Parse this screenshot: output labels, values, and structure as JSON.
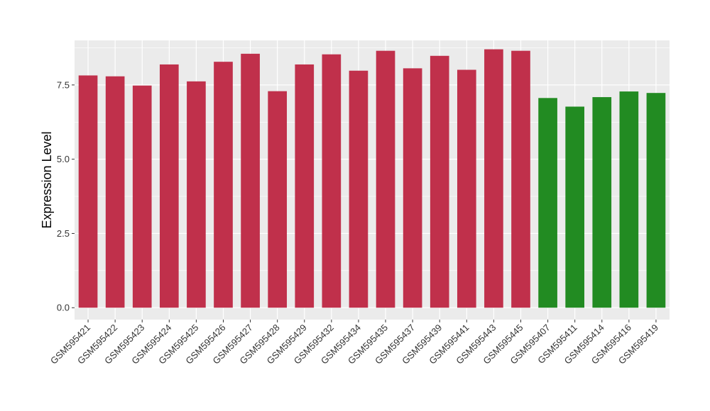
{
  "chart_data": {
    "type": "bar",
    "ylabel": "Expression Level",
    "xlabel": "",
    "ylim": [
      -0.4,
      9.0
    ],
    "yticks": [
      0.0,
      2.5,
      5.0,
      7.5
    ],
    "ytick_labels": [
      "0.0",
      "2.5",
      "5.0",
      "7.5"
    ],
    "grid": true,
    "legend": "none",
    "categories": [
      "GSM595421",
      "GSM595422",
      "GSM595423",
      "GSM595424",
      "GSM595425",
      "GSM595426",
      "GSM595427",
      "GSM595428",
      "GSM595429",
      "GSM595432",
      "GSM595434",
      "GSM595435",
      "GSM595437",
      "GSM595439",
      "GSM595441",
      "GSM595443",
      "GSM595445",
      "GSM595407",
      "GSM595411",
      "GSM595414",
      "GSM595416",
      "GSM595419"
    ],
    "values": [
      7.82,
      7.79,
      7.48,
      8.19,
      7.62,
      8.28,
      8.55,
      7.29,
      8.19,
      8.53,
      7.98,
      8.65,
      8.06,
      8.48,
      8.01,
      8.7,
      8.65,
      7.06,
      6.77,
      7.09,
      7.28,
      7.23
    ],
    "colors": [
      "#C0304B",
      "#C0304B",
      "#C0304B",
      "#C0304B",
      "#C0304B",
      "#C0304B",
      "#C0304B",
      "#C0304B",
      "#C0304B",
      "#C0304B",
      "#C0304B",
      "#C0304B",
      "#C0304B",
      "#C0304B",
      "#C0304B",
      "#C0304B",
      "#C0304B",
      "#228B22",
      "#228B22",
      "#228B22",
      "#228B22",
      "#228B22"
    ],
    "panel_background": "#EBEBEB",
    "grid_color": "#FFFFFF"
  }
}
